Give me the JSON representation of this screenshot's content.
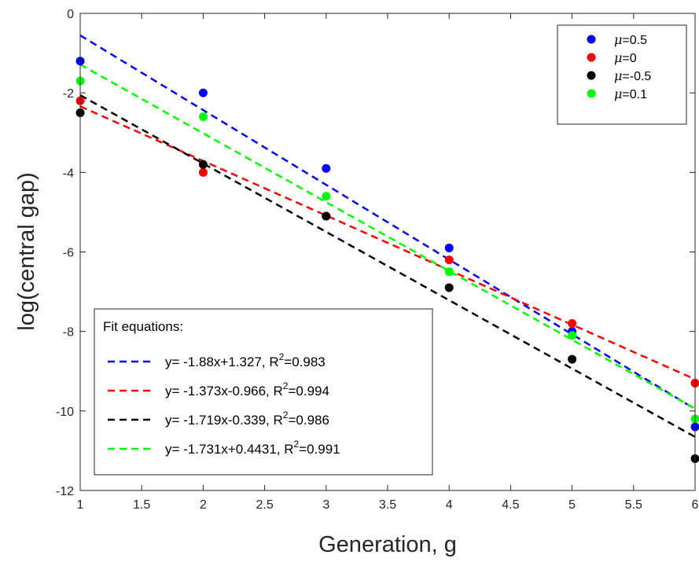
{
  "chart_data": {
    "type": "scatter",
    "xlabel": "Generation, g",
    "ylabel": "log(central gap)",
    "xlim": [
      1,
      6
    ],
    "ylim": [
      -12,
      0
    ],
    "xticks": [
      1,
      1.5,
      2,
      2.5,
      3,
      3.5,
      4,
      4.5,
      5,
      5.5,
      6
    ],
    "xtick_labels": [
      "1",
      "1.5",
      "2",
      "2.5",
      "3",
      "3.5",
      "4",
      "4.5",
      "5",
      "5.5",
      "6"
    ],
    "yticks": [
      0,
      -2,
      -4,
      -6,
      -8,
      -10,
      -12
    ],
    "ytick_labels": [
      "0",
      "-2",
      "-4",
      "-6",
      "-8",
      "-10",
      "-12"
    ],
    "grid": false,
    "x": [
      1,
      2,
      3,
      4,
      5,
      6
    ],
    "series": [
      {
        "name": "μ=0.5",
        "color": "#0000ff",
        "values": [
          -1.2,
          -2.0,
          -3.9,
          -5.9,
          -8.0,
          -10.4
        ],
        "fit": {
          "slope": -1.88,
          "intercept": 1.327
        }
      },
      {
        "name": "μ=0",
        "color": "#ff0000",
        "values": [
          -2.2,
          -4.0,
          -5.1,
          -6.2,
          -7.8,
          -9.3
        ],
        "fit": {
          "slope": -1.373,
          "intercept": -0.966
        }
      },
      {
        "name": "μ=-0.5",
        "color": "#000000",
        "values": [
          -2.5,
          -3.8,
          -5.1,
          -6.9,
          -8.7,
          -11.2
        ],
        "fit": {
          "slope": -1.719,
          "intercept": -0.339
        }
      },
      {
        "name": "μ=0.1",
        "color": "#00ff00",
        "values": [
          -1.7,
          -2.6,
          -4.6,
          -6.5,
          -8.1,
          -10.2
        ],
        "fit": {
          "slope": -1.731,
          "intercept": 0.4431
        }
      }
    ],
    "legend": {
      "placement": "top-right",
      "entries": [
        {
          "prefix": "μ",
          "suffix": "=0.5"
        },
        {
          "prefix": "μ",
          "suffix": "=0"
        },
        {
          "prefix": "μ",
          "suffix": "=-0.5"
        },
        {
          "prefix": "μ",
          "suffix": "=0.1"
        }
      ]
    },
    "fit_legend": {
      "placement": "bottom-left",
      "title": "Fit equations:",
      "entries": [
        {
          "eq": "y= -1.88x+1.327, R",
          "sup": "2",
          "r2": "=0.983"
        },
        {
          "eq": "y= -1.373x-0.966, R",
          "sup": "2",
          "r2": "=0.994"
        },
        {
          "eq": "y= -1.719x-0.339, R",
          "sup": "2",
          "r2": "=0.986"
        },
        {
          "eq": "y= -1.731x+0.4431, R",
          "sup": "2",
          "r2": "=0.991"
        }
      ]
    }
  }
}
